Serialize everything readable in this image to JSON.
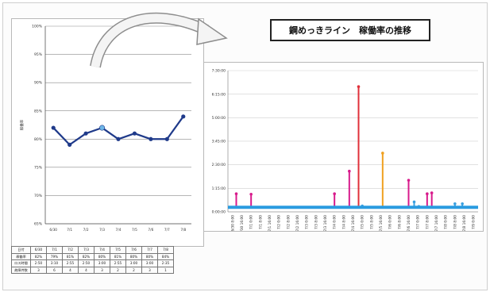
{
  "title": "鋼めっきライン　稼働率の推移",
  "chart_data": [
    {
      "type": "line",
      "categories": [
        "6/30",
        "7/1",
        "7/2",
        "7/3",
        "7/4",
        "7/5",
        "7/6",
        "7/7",
        "7/8"
      ],
      "values": [
        82,
        79,
        81,
        82,
        80,
        81,
        80,
        80,
        84
      ],
      "highlight_index": 3,
      "ylim": [
        65,
        100
      ],
      "ytick_values": [
        65,
        70,
        75,
        80,
        85,
        90,
        95,
        100
      ],
      "ytick_labels": [
        "65%",
        "70%",
        "75%",
        "80%",
        "85%",
        "90%",
        "95%",
        "100%"
      ],
      "ylabel": "稼働率",
      "grid": true,
      "color": "#1f3a8a",
      "highlight_color": "#6fb7e8"
    },
    {
      "type": "bar",
      "ylim": [
        0,
        0.3125
      ],
      "ytick_values": [
        0,
        0.0521,
        0.1042,
        0.1563,
        0.2083,
        0.2604,
        0.3125
      ],
      "ytick_labels": [
        "0:00:00",
        "1:15:00",
        "2:30:00",
        "3:45:00",
        "5:00:00",
        "6:15:00",
        "7:30:00"
      ],
      "baseline": 0.01,
      "baseline_color": "#2a9be0",
      "grid": true,
      "categories": [
        "6/30 8:00",
        "6/30 16:00",
        "7/1 0:00",
        "7/1 8:00",
        "7/1 16:00",
        "7/2 0:00",
        "7/2 8:00",
        "7/2 16:00",
        "7/3 0:00",
        "7/3 8:00",
        "7/3 16:00",
        "7/4 0:00",
        "7/4 8:00",
        "7/4 16:00",
        "7/5 0:00",
        "7/5 8:00",
        "7/5 16:00",
        "7/6 0:00",
        "7/6 8:00",
        "7/6 16:00",
        "7/7 0:00",
        "7/7 8:00",
        "7/7 16:00",
        "7/8 0:00",
        "7/8 8:00",
        "7/8 16:00",
        "7/9 0:00"
      ],
      "series": [
        {
          "color": "#d81b8c",
          "points": [
            [
              0.4,
              0.04
            ],
            [
              2.0,
              0.039
            ],
            [
              11.0,
              0.04
            ],
            [
              12.6,
              0.09
            ],
            [
              19.0,
              0.07
            ],
            [
              21.0,
              0.04
            ],
            [
              21.5,
              0.042
            ]
          ]
        },
        {
          "color": "#e0303a",
          "points": [
            [
              13.6,
              0.277
            ]
          ]
        },
        {
          "color": "#f0a020",
          "points": [
            [
              16.2,
              0.13
            ]
          ]
        },
        {
          "color": "#3aa0e0",
          "points": [
            [
              14.0,
              0.013
            ],
            [
              19.6,
              0.022
            ],
            [
              20.1,
              0.012
            ],
            [
              24.0,
              0.018
            ],
            [
              24.8,
              0.018
            ]
          ]
        }
      ]
    }
  ],
  "table": {
    "rows": [
      [
        "日付",
        "6/30",
        "7/1",
        "7/2",
        "7/3",
        "7/4",
        "7/5",
        "7/6",
        "7/7",
        "7/8"
      ],
      [
        "稼働率",
        "82%",
        "79%",
        "81%",
        "82%",
        "80%",
        "81%",
        "80%",
        "80%",
        "84%"
      ],
      [
        "ロス時間",
        "2:50",
        "3:10",
        "2:55",
        "2:50",
        "3:00",
        "2:55",
        "3:00",
        "3:00",
        "2:35"
      ],
      [
        "故障件数",
        "3",
        "6",
        "4",
        "4",
        "3",
        "2",
        "2",
        "3",
        "1"
      ]
    ]
  }
}
